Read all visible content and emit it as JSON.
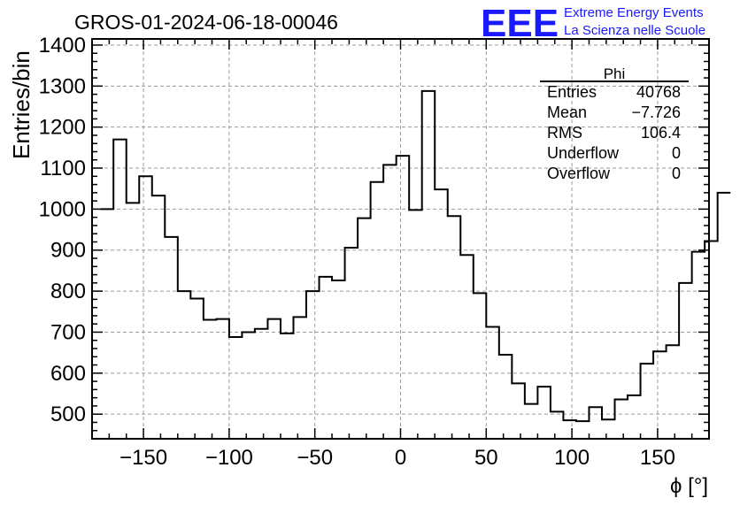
{
  "title": "GROS-01-2024-06-18-00046",
  "logo": {
    "mark": "EEE",
    "line1": "Extreme Energy Events",
    "line2": "La Scienza nelle Scuole",
    "color": "#1a1aff"
  },
  "stats": {
    "name": "Phi",
    "rows": [
      {
        "label": "Entries",
        "value": "40768"
      },
      {
        "label": "Mean",
        "value": "−7.726"
      },
      {
        "label": "RMS",
        "value": "106.4"
      },
      {
        "label": "Underflow",
        "value": "0"
      },
      {
        "label": "Overflow",
        "value": "0"
      }
    ]
  },
  "chart_data": {
    "type": "histogram",
    "title": "GROS-01-2024-06-18-00046",
    "xlabel": "ϕ [°]",
    "ylabel": "Entries/bin",
    "xlim": [
      -180,
      180
    ],
    "ylim": [
      440,
      1415
    ],
    "x_ticks": [
      -150,
      -100,
      -50,
      0,
      50,
      100,
      150
    ],
    "x_tick_labels": [
      "−150",
      "−100",
      "−50",
      "0",
      "50",
      "100",
      "150"
    ],
    "y_ticks": [
      500,
      600,
      700,
      800,
      900,
      1000,
      1100,
      1200,
      1300,
      1400
    ],
    "grid": true,
    "line_color": "#000000",
    "bin_edges_start": -175,
    "bin_width": 7.5,
    "values": [
      1000,
      1170,
      1015,
      1080,
      1033,
      932,
      800,
      782,
      730,
      732,
      688,
      700,
      708,
      732,
      697,
      737,
      800,
      835,
      826,
      906,
      978,
      1066,
      1108,
      1130,
      998,
      1288,
      1048,
      983,
      888,
      795,
      713,
      645,
      575,
      525,
      567,
      506,
      485,
      483,
      517,
      487,
      536,
      546,
      623,
      653,
      668,
      820,
      896,
      922,
      1040
    ]
  }
}
